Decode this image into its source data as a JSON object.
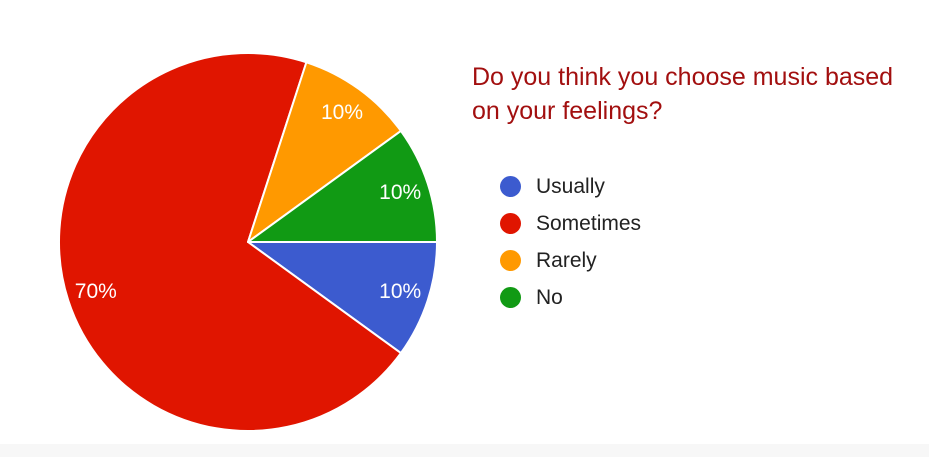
{
  "chart_data": {
    "type": "pie",
    "title": "Do you think you choose music based on your feelings?",
    "series": [
      {
        "name": "Usually",
        "value": 10,
        "label": "10%",
        "color": "#3c5bcf"
      },
      {
        "name": "Sometimes",
        "value": 70,
        "label": "70%",
        "color": "#e01500"
      },
      {
        "name": "Rarely",
        "value": 10,
        "label": "10%",
        "color": "#ff9900"
      },
      {
        "name": "No",
        "value": 10,
        "label": "10%",
        "color": "#119a14"
      }
    ],
    "legend_position": "right",
    "slice_label_color": "#ffffff"
  }
}
